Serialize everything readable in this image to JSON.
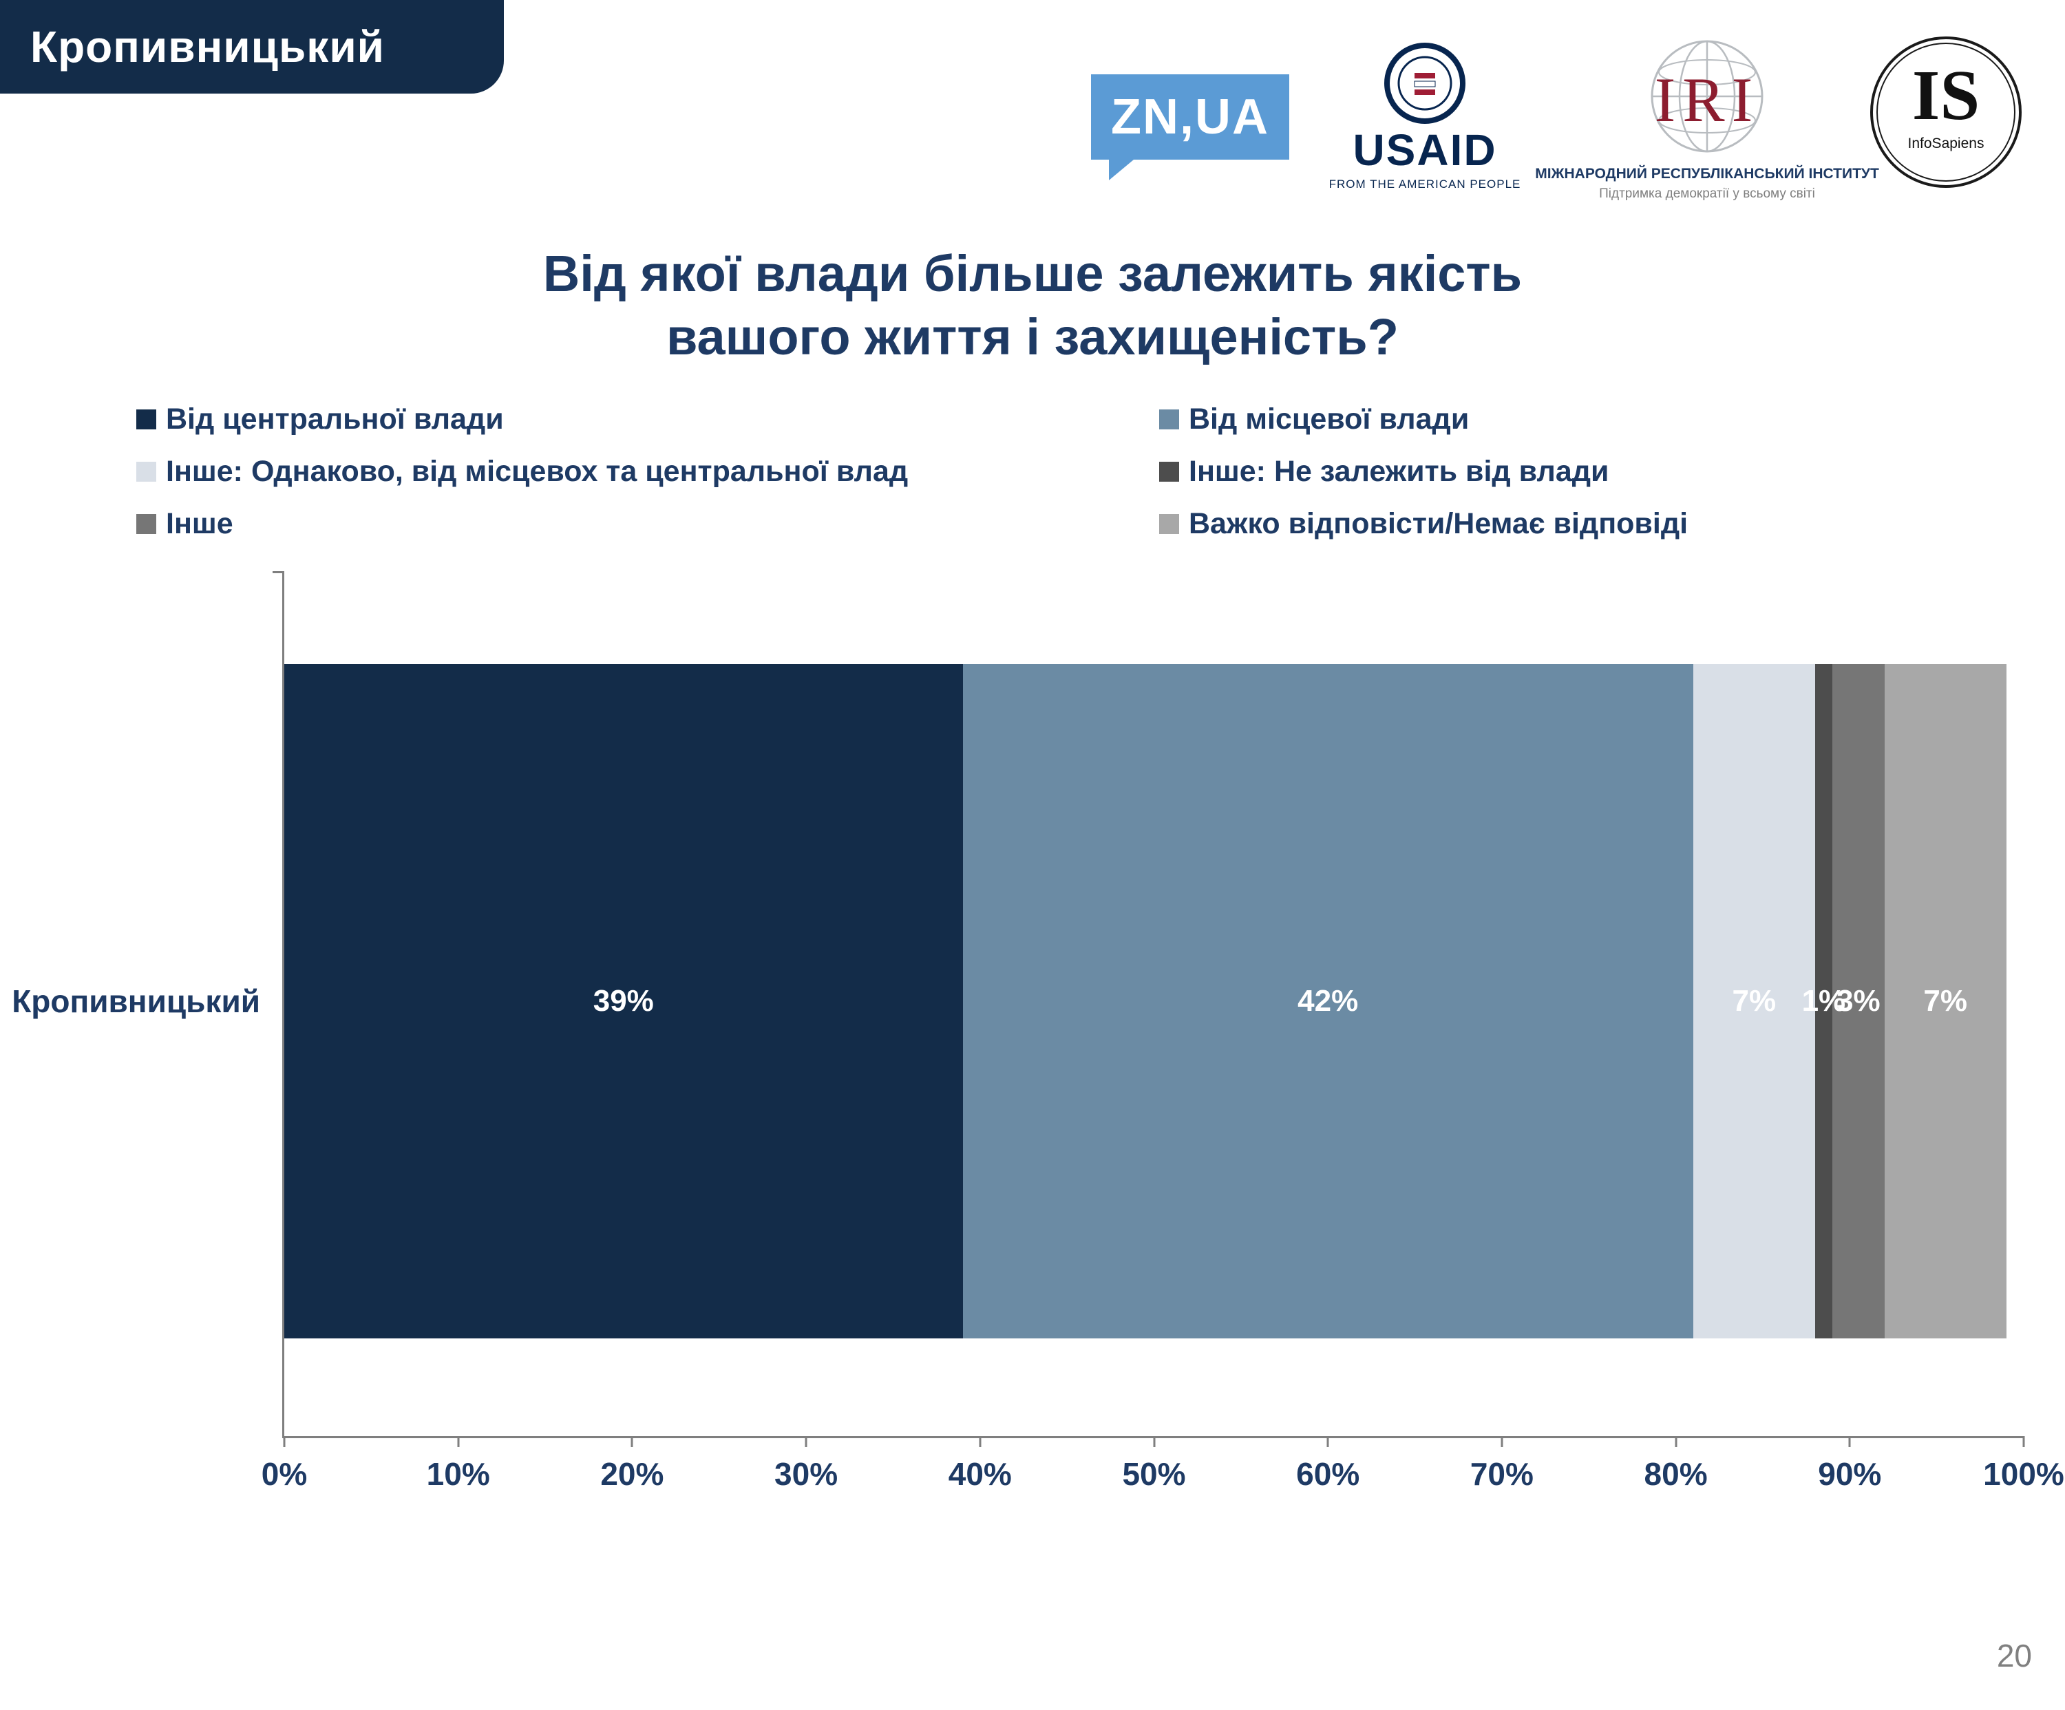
{
  "page": {
    "region_label": "Кропивницький",
    "page_number": "20"
  },
  "logos": {
    "znua": {
      "text": "ZN,UA",
      "color": "#5b9bd5"
    },
    "usaid": {
      "title": "USAID",
      "subtitle": "FROM THE AMERICAN PEOPLE"
    },
    "iri": {
      "title": "IRI",
      "subtitle1": "МІЖНАРОДНИЙ РЕСПУБЛІКАНСЬКИЙ ІНСТИТУТ",
      "subtitle2": "Підтримка демократії у всьому світі"
    },
    "infosapiens": {
      "title": "IS",
      "subtitle": "InfoSapiens"
    }
  },
  "chart_data": {
    "type": "bar",
    "orientation": "horizontal",
    "stacked": true,
    "title": "Від якої влади більше залежить якість вашого життя і захищеність?",
    "title_lines": [
      "Від якої влади більше залежить якість",
      "вашого життя і захищеність?"
    ],
    "categories": [
      "Кропивницький"
    ],
    "series": [
      {
        "name": "Від центральної влади",
        "color": "#132c49",
        "values": [
          39
        ],
        "label": "39%"
      },
      {
        "name": "Від місцевої влади",
        "color": "#6b8ba4",
        "values": [
          42
        ],
        "label": "42%"
      },
      {
        "name": "Інше: Однаково, від місцевох та центральної влад",
        "color": "#d9dfe7",
        "values": [
          7
        ],
        "label": "7%"
      },
      {
        "name": "Інше: Не залежить від влади",
        "color": "#4d4d4d",
        "values": [
          1
        ],
        "label": "1%"
      },
      {
        "name": "Інше",
        "color": "#767676",
        "values": [
          3
        ],
        "label": "3%"
      },
      {
        "name": "Важко відповісти/Немає відповіді",
        "color": "#a8a8a8",
        "values": [
          7
        ],
        "label": "7%"
      }
    ],
    "x_ticks": [
      "0%",
      "10%",
      "20%",
      "30%",
      "40%",
      "50%",
      "60%",
      "70%",
      "80%",
      "90%",
      "100%"
    ],
    "xlim": [
      0,
      100
    ],
    "legend_position": "top",
    "axis_color": "#7f7f7f",
    "text_color": "#1e3a64"
  }
}
